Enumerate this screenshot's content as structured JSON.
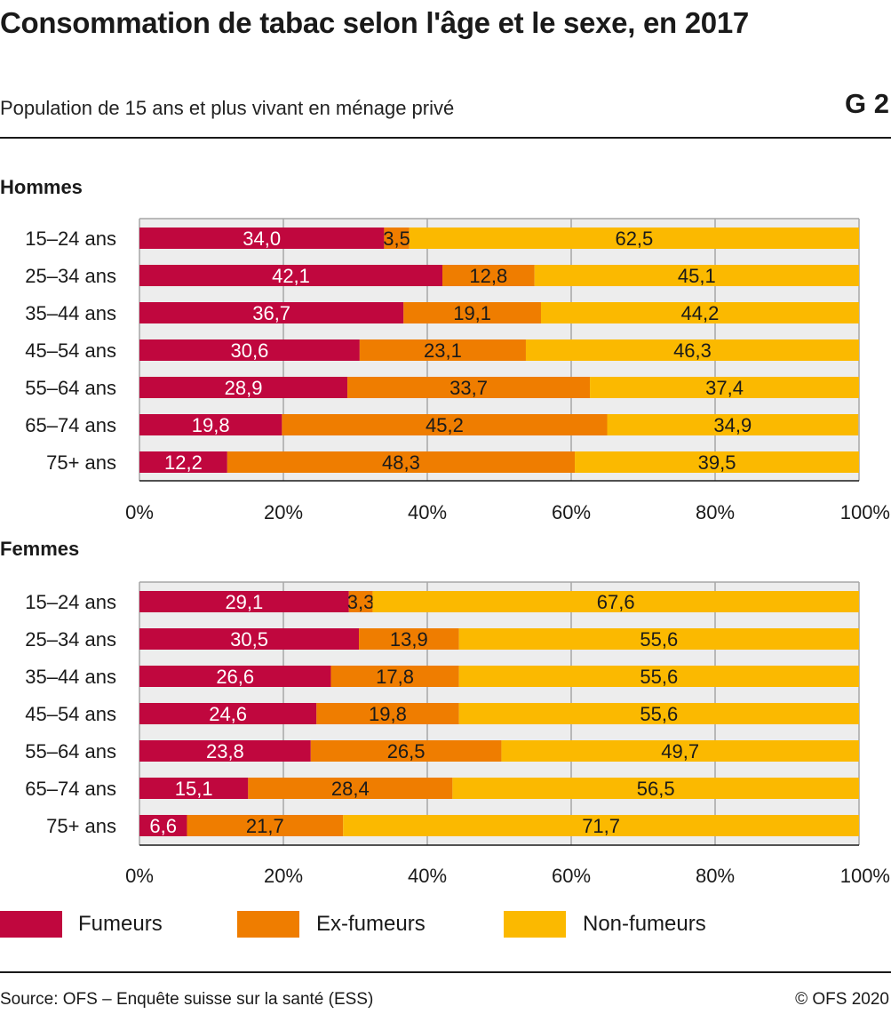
{
  "header": {
    "title": "Consommation de tabac selon l'âge et le sexe, en 2017",
    "subtitle": "Population de 15 ans et plus vivant en ménage privé",
    "graph_number": "G 2"
  },
  "colors": {
    "fumeurs": "#c0073e",
    "ex_fumeurs": "#ef7d00",
    "non_fumeurs": "#fbb900",
    "plot_bg": "#ededed",
    "grid": "#a6a6a6"
  },
  "legend": {
    "fumeurs": "Fumeurs",
    "ex_fumeurs": "Ex-fumeurs",
    "non_fumeurs": "Non-fumeurs"
  },
  "footer": {
    "source": "Source: OFS – Enquête suisse sur la santé (ESS)",
    "copyright": "© OFS 2020"
  },
  "chart_data": [
    {
      "type": "bar",
      "orientation": "horizontal",
      "stacked": true,
      "panel_title": "Hommes",
      "categories": [
        "15–24 ans",
        "25–34 ans",
        "35–44 ans",
        "45–54 ans",
        "55–64 ans",
        "65–74 ans",
        "75+ ans"
      ],
      "series": [
        {
          "name": "Fumeurs",
          "values": [
            34.0,
            42.1,
            36.7,
            30.6,
            28.9,
            19.8,
            12.2
          ]
        },
        {
          "name": "Ex-fumeurs",
          "values": [
            3.5,
            12.8,
            19.1,
            23.1,
            33.7,
            45.2,
            48.3
          ]
        },
        {
          "name": "Non-fumeurs",
          "values": [
            62.5,
            45.1,
            44.2,
            46.3,
            37.4,
            34.9,
            39.5
          ]
        }
      ],
      "xlim": [
        0,
        100
      ],
      "x_ticks": [
        "0%",
        "20%",
        "40%",
        "60%",
        "80%",
        "100%"
      ],
      "grid": true
    },
    {
      "type": "bar",
      "orientation": "horizontal",
      "stacked": true,
      "panel_title": "Femmes",
      "categories": [
        "15–24 ans",
        "25–34 ans",
        "35–44 ans",
        "45–54 ans",
        "55–64 ans",
        "65–74 ans",
        "75+ ans"
      ],
      "series": [
        {
          "name": "Fumeurs",
          "values": [
            29.1,
            30.5,
            26.6,
            24.6,
            23.8,
            15.1,
            6.6
          ]
        },
        {
          "name": "Ex-fumeurs",
          "values": [
            3.3,
            13.9,
            17.8,
            19.8,
            26.5,
            28.4,
            21.7
          ]
        },
        {
          "name": "Non-fumeurs",
          "values": [
            67.6,
            55.6,
            55.6,
            55.6,
            49.7,
            56.5,
            71.7
          ]
        }
      ],
      "xlim": [
        0,
        100
      ],
      "x_ticks": [
        "0%",
        "20%",
        "40%",
        "60%",
        "80%",
        "100%"
      ],
      "grid": true
    }
  ]
}
